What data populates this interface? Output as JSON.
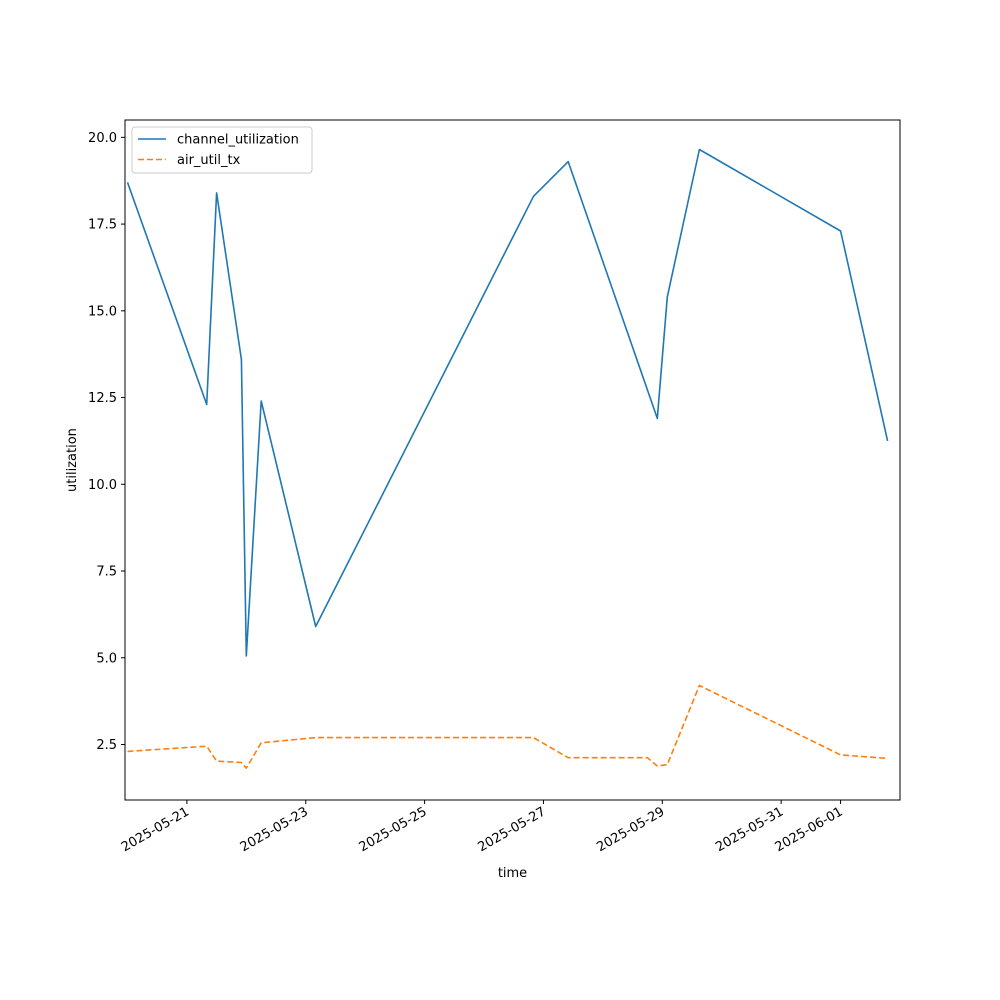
{
  "chart_data": {
    "type": "line",
    "xlabel": "time",
    "ylabel": "utilization",
    "xlim": [
      "2025-05-19T23:00:00",
      "2025-06-02T00:00:00"
    ],
    "ylim": [
      0.9,
      20.5
    ],
    "x_ticks": [
      "2025-05-21",
      "2025-05-23",
      "2025-05-25",
      "2025-05-27",
      "2025-05-29",
      "2025-05-31",
      "2025-06-01"
    ],
    "y_ticks": [
      2.5,
      5.0,
      7.5,
      10.0,
      12.5,
      15.0,
      17.5,
      20.0
    ],
    "y_tick_labels": [
      "2.5",
      "5.0",
      "7.5",
      "10.0",
      "12.5",
      "15.0",
      "17.5",
      "20.0"
    ],
    "legend_position": "upper-left",
    "grid": false,
    "series": [
      {
        "name": "channel_utilization",
        "color": "#1f77b4",
        "dash": "solid",
        "points": [
          {
            "x": "2025-05-20T00:00:00",
            "y": 18.7
          },
          {
            "x": "2025-05-21T08:00:00",
            "y": 12.3
          },
          {
            "x": "2025-05-21T12:00:00",
            "y": 18.4
          },
          {
            "x": "2025-05-21T22:00:00",
            "y": 13.6
          },
          {
            "x": "2025-05-22T00:00:00",
            "y": 5.05
          },
          {
            "x": "2025-05-22T06:00:00",
            "y": 12.4
          },
          {
            "x": "2025-05-23T04:00:00",
            "y": 5.9
          },
          {
            "x": "2025-05-26T20:00:00",
            "y": 18.3
          },
          {
            "x": "2025-05-27T10:00:00",
            "y": 19.3
          },
          {
            "x": "2025-05-28T22:00:00",
            "y": 11.9
          },
          {
            "x": "2025-05-29T02:00:00",
            "y": 15.4
          },
          {
            "x": "2025-05-29T15:00:00",
            "y": 19.65
          },
          {
            "x": "2025-06-01T00:00:00",
            "y": 17.3
          },
          {
            "x": "2025-06-01T19:00:00",
            "y": 11.25
          }
        ]
      },
      {
        "name": "air_util_tx",
        "color": "#ff7f0e",
        "dash": "dashed",
        "points": [
          {
            "x": "2025-05-20T00:00:00",
            "y": 2.3
          },
          {
            "x": "2025-05-21T08:00:00",
            "y": 2.45
          },
          {
            "x": "2025-05-21T12:00:00",
            "y": 2.02
          },
          {
            "x": "2025-05-21T22:00:00",
            "y": 1.98
          },
          {
            "x": "2025-05-22T00:00:00",
            "y": 1.82
          },
          {
            "x": "2025-05-22T06:00:00",
            "y": 2.55
          },
          {
            "x": "2025-05-23T04:00:00",
            "y": 2.7
          },
          {
            "x": "2025-05-26T20:00:00",
            "y": 2.7
          },
          {
            "x": "2025-05-27T10:00:00",
            "y": 2.12
          },
          {
            "x": "2025-05-28T18:00:00",
            "y": 2.12
          },
          {
            "x": "2025-05-28T22:00:00",
            "y": 1.88
          },
          {
            "x": "2025-05-29T02:00:00",
            "y": 1.92
          },
          {
            "x": "2025-05-29T15:00:00",
            "y": 4.2
          },
          {
            "x": "2025-06-01T00:00:00",
            "y": 2.2
          },
          {
            "x": "2025-06-01T19:00:00",
            "y": 2.1
          }
        ]
      }
    ]
  }
}
